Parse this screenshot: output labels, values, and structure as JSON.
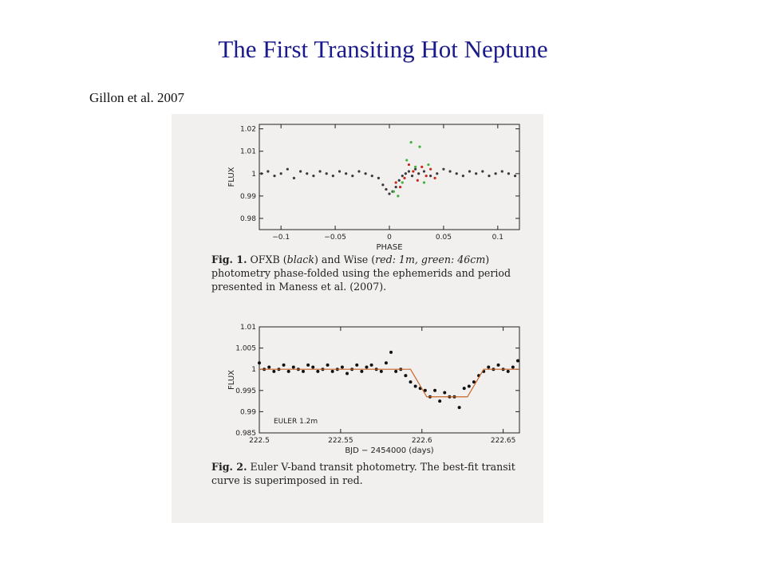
{
  "slide": {
    "title": "The First Transiting Hot Neptune",
    "citation": "Gillon et al. 2007"
  },
  "fig1": {
    "label": "Fig. 1.",
    "caption_a": "OFXB (",
    "caption_b": "black",
    "caption_c": ") and Wise (",
    "caption_d": "red: 1m, green: 46cm",
    "caption_e": ") photometry phase-folded using the ephemerids and period presented in Maness et al. (2007)."
  },
  "fig2": {
    "label": "Fig. 2.",
    "caption": "Euler V-band transit photometry. The best-fit transit curve is superimposed in red."
  },
  "chart_data": [
    {
      "type": "scatter",
      "title": "",
      "xlabel": "PHASE",
      "ylabel": "FLUX",
      "xlim": [
        -0.12,
        0.12
      ],
      "ylim": [
        0.975,
        1.022
      ],
      "x_ticks": [
        "−0.1",
        "−0.05",
        "0",
        "0.05",
        "0.1"
      ],
      "y_ticks": [
        "1.02",
        "1.01",
        "1",
        "0.99",
        "0.98"
      ],
      "series": [
        {
          "name": "OFXB",
          "color": "#3a3a3a",
          "x": [
            -0.118,
            -0.112,
            -0.106,
            -0.1,
            -0.094,
            -0.088,
            -0.082,
            -0.076,
            -0.07,
            -0.064,
            -0.058,
            -0.052,
            -0.046,
            -0.04,
            -0.034,
            -0.028,
            -0.022,
            -0.016,
            -0.01,
            -0.006,
            -0.003,
            0.0,
            0.003,
            0.006,
            0.009,
            0.012,
            0.015,
            0.018,
            0.021,
            0.024,
            0.027,
            0.032,
            0.038,
            0.044,
            0.05,
            0.056,
            0.062,
            0.068,
            0.074,
            0.08,
            0.086,
            0.092,
            0.098,
            0.104,
            0.11,
            0.116
          ],
          "y": [
            1.0,
            1.001,
            0.999,
            1.0,
            1.002,
            0.998,
            1.001,
            1.0,
            0.999,
            1.001,
            1.0,
            0.999,
            1.001,
            1.0,
            0.999,
            1.001,
            1.0,
            0.999,
            0.998,
            0.995,
            0.993,
            0.991,
            0.992,
            0.994,
            0.997,
            0.999,
            1.0,
            1.001,
            0.999,
            1.002,
            1.0,
            1.001,
            0.999,
            1.0,
            1.002,
            1.001,
            1.0,
            0.999,
            1.001,
            1.0,
            1.001,
            0.999,
            1.0,
            1.001,
            1.0,
            0.999
          ]
        },
        {
          "name": "Wise 1m",
          "color": "#c8281e",
          "x": [
            0.006,
            0.01,
            0.014,
            0.018,
            0.022,
            0.026,
            0.03,
            0.034,
            0.038,
            0.042
          ],
          "y": [
            0.996,
            0.994,
            0.998,
            1.004,
            1.001,
            0.997,
            1.003,
            0.999,
            1.002,
            0.998
          ]
        },
        {
          "name": "Wise 46cm",
          "color": "#3fb23f",
          "x": [
            0.004,
            0.008,
            0.012,
            0.016,
            0.02,
            0.024,
            0.028,
            0.032,
            0.036
          ],
          "y": [
            0.992,
            0.99,
            0.996,
            1.006,
            1.014,
            1.003,
            1.012,
            0.996,
            1.004
          ]
        }
      ]
    },
    {
      "type": "scatter",
      "title": "",
      "xlabel": "BJD − 2454000 (days)",
      "ylabel": "FLUX",
      "xlim": [
        222.5,
        222.66
      ],
      "ylim": [
        0.985,
        1.01
      ],
      "x_ticks": [
        "222.5",
        "222.55",
        "222.6",
        "222.65"
      ],
      "y_ticks": [
        "1.01",
        "1.005",
        "1",
        "0.995",
        "0.99",
        "0.985"
      ],
      "annotation": "EULER 1.2m",
      "series": [
        {
          "name": "",
          "color": "#111111",
          "x": [
            222.5,
            222.503,
            222.506,
            222.509,
            222.512,
            222.515,
            222.518,
            222.521,
            222.524,
            222.527,
            222.53,
            222.533,
            222.536,
            222.539,
            222.542,
            222.545,
            222.548,
            222.551,
            222.554,
            222.557,
            222.56,
            222.563,
            222.566,
            222.569,
            222.572,
            222.575,
            222.578,
            222.581,
            222.584,
            222.587,
            222.59,
            222.593,
            222.596,
            222.599,
            222.602,
            222.605,
            222.608,
            222.611,
            222.614,
            222.617,
            222.62,
            222.623,
            222.626,
            222.629,
            222.632,
            222.635,
            222.638,
            222.641,
            222.644,
            222.647,
            222.65,
            222.653,
            222.656,
            222.659
          ],
          "y": [
            1.0015,
            1.0,
            1.0005,
            0.9995,
            1.0,
            1.001,
            0.9995,
            1.0005,
            1.0,
            0.9995,
            1.001,
            1.0005,
            0.9995,
            1.0,
            1.001,
            0.9995,
            1.0,
            1.0005,
            0.999,
            1.0,
            1.001,
            0.9995,
            1.0005,
            1.001,
            1.0,
            0.9995,
            1.0015,
            1.004,
            0.9995,
            1.0,
            0.9985,
            0.997,
            0.996,
            0.9955,
            0.995,
            0.9935,
            0.995,
            0.9925,
            0.9945,
            0.9935,
            0.9935,
            0.991,
            0.9955,
            0.996,
            0.997,
            0.9985,
            0.9995,
            1.0005,
            1.0,
            1.001,
            1.0,
            0.9995,
            1.0005,
            1.002
          ]
        },
        {
          "name": "best-fit",
          "color": "#c86428",
          "x": [
            222.5,
            222.593,
            222.603,
            222.628,
            222.638,
            222.66
          ],
          "y": [
            1.0,
            1.0,
            0.9935,
            0.9935,
            1.0,
            1.0
          ]
        }
      ]
    }
  ]
}
